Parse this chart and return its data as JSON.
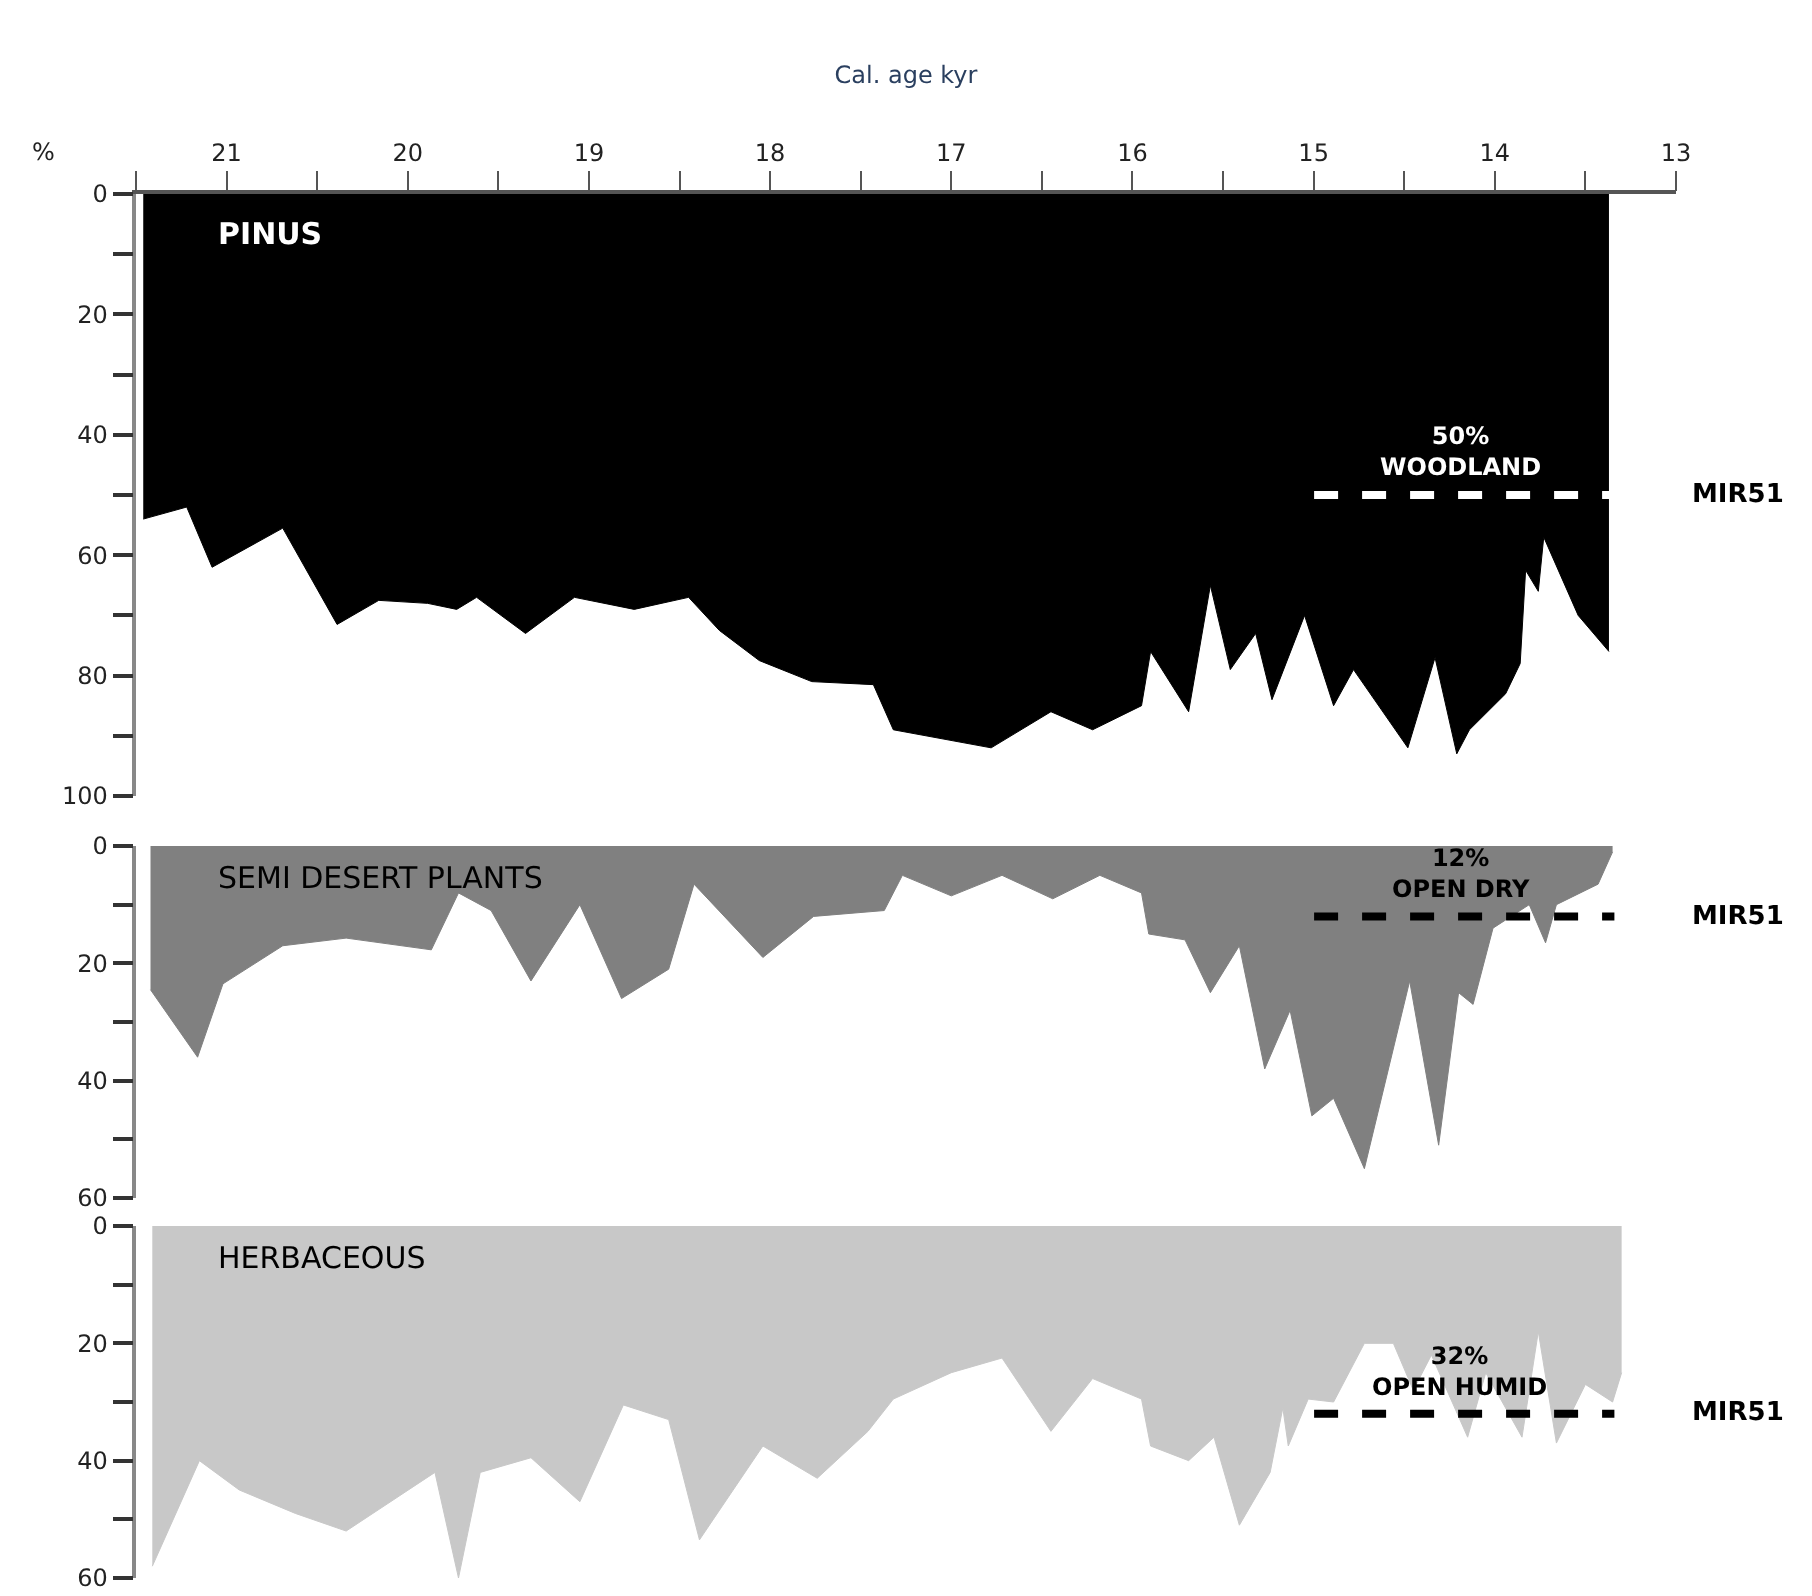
{
  "chart_data": [
    {
      "type": "area",
      "xlabel": "Cal. age kyr",
      "ylabel": "%",
      "xlim": [
        21.5,
        13
      ],
      "ylim": [
        100,
        0
      ],
      "xticks": [
        {
          "value": 21.5,
          "label": null
        },
        21,
        {
          "value": 20.5,
          "label": null
        },
        20,
        {
          "value": 19.5,
          "label": null
        },
        19,
        {
          "value": 18.5,
          "label": null
        },
        18,
        {
          "value": 17.5,
          "label": null
        },
        17,
        {
          "value": 16.5,
          "label": null
        },
        16,
        {
          "value": 15.5,
          "label": null
        },
        15,
        {
          "value": 14.5,
          "label": null
        },
        14,
        {
          "value": 13.5,
          "label": null
        },
        13
      ],
      "yticks": [
        0,
        {
          "value": 10,
          "label": null
        },
        20,
        {
          "value": 30,
          "label": null
        },
        40,
        {
          "value": 50,
          "label": null
        },
        60,
        {
          "value": 70,
          "label": null
        },
        80,
        {
          "value": 90,
          "label": null
        },
        100
      ],
      "series": [
        {
          "name": "PINUS",
          "color": "#000000",
          "x": [
            21.46,
            21.22,
            21.08,
            20.69,
            20.39,
            20.16,
            19.89,
            19.73,
            19.62,
            19.35,
            19.08,
            18.75,
            18.45,
            18.28,
            18.06,
            17.77,
            17.43,
            17.32,
            16.78,
            16.45,
            16.22,
            15.95,
            15.9,
            15.69,
            15.57,
            15.46,
            15.32,
            15.23,
            15.05,
            14.89,
            14.78,
            14.48,
            14.33,
            14.21,
            14.14,
            13.94,
            13.86,
            13.83,
            13.76,
            13.73,
            13.54,
            13.37
          ],
          "values": [
            54,
            52,
            62,
            55.5,
            71.5,
            67.5,
            68,
            69,
            67,
            73,
            67,
            69,
            67,
            72.5,
            77.5,
            81,
            81.5,
            89,
            92,
            86,
            89,
            85,
            76,
            86,
            65,
            79,
            73,
            84,
            70,
            85,
            79,
            92,
            77,
            93,
            89,
            83,
            78,
            62.5,
            66,
            57,
            70,
            76
          ]
        }
      ],
      "ref_lines": [
        {
          "axis": "y",
          "value": 50,
          "label": "50%\nWOODLAND",
          "color": "#ffffff",
          "line_style": "dashed"
        }
      ],
      "annotations": [
        "MIR51"
      ]
    },
    {
      "type": "area",
      "xlim": [
        21.5,
        13
      ],
      "ylim": [
        60,
        0
      ],
      "tick_labels": "y",
      "yticks": [
        0,
        {
          "value": 10,
          "label": null
        },
        20,
        {
          "value": 30,
          "label": null
        },
        40,
        {
          "value": 50,
          "label": null
        },
        60
      ],
      "series": [
        {
          "name": "SEMI DESERT PLANTS",
          "color": "#808080",
          "x": [
            21.42,
            21.16,
            21.02,
            20.69,
            20.34,
            19.87,
            19.72,
            19.54,
            19.32,
            19.05,
            18.82,
            18.56,
            18.42,
            18.04,
            17.76,
            17.37,
            17.27,
            17.0,
            16.72,
            16.44,
            16.18,
            15.95,
            15.91,
            15.71,
            15.57,
            15.41,
            15.27,
            15.13,
            15.01,
            14.89,
            14.72,
            14.47,
            14.31,
            14.2,
            14.12,
            14.01,
            13.81,
            13.72,
            13.66,
            13.43,
            13.35
          ],
          "values": [
            24.5,
            36,
            23.5,
            17,
            15.7,
            17.7,
            8,
            11,
            23,
            10,
            26,
            21,
            6.5,
            19,
            12,
            11,
            5,
            8.5,
            5,
            9,
            5,
            8,
            15,
            16,
            25,
            17,
            38,
            28,
            46,
            43,
            55,
            23,
            51,
            25,
            27,
            14,
            10,
            16.5,
            10,
            6.5,
            1
          ]
        }
      ],
      "ref_lines": [
        {
          "axis": "y",
          "value": 12,
          "label": "12%\nOPEN DRY",
          "color": "#000000",
          "line_style": "dashed"
        }
      ],
      "annotations": [
        "MIR51"
      ]
    },
    {
      "type": "area",
      "xlim": [
        21.5,
        13
      ],
      "ylim": [
        60,
        0
      ],
      "tick_labels": "y",
      "yticks": [
        0,
        {
          "value": 10,
          "label": null
        },
        20,
        {
          "value": 30,
          "label": null
        },
        40,
        {
          "value": 50,
          "label": null
        },
        60
      ],
      "series": [
        {
          "name": "HERBACEOUS",
          "color": "#c8c8c8",
          "x": [
            21.41,
            21.15,
            20.93,
            20.62,
            20.34,
            19.85,
            19.72,
            19.6,
            19.32,
            19.05,
            18.81,
            18.56,
            18.39,
            18.04,
            17.74,
            17.46,
            17.32,
            17.0,
            16.72,
            16.45,
            16.22,
            15.95,
            15.9,
            15.69,
            15.55,
            15.41,
            15.24,
            15.17,
            15.14,
            15.03,
            14.89,
            14.72,
            14.56,
            14.45,
            14.35,
            14.15,
            14.05,
            13.85,
            13.76,
            13.66,
            13.5,
            13.35,
            13.3
          ],
          "values": [
            58,
            40,
            45,
            49,
            52,
            42,
            60,
            42,
            39.5,
            47,
            30.5,
            33,
            53.5,
            37.5,
            43,
            35,
            29.5,
            25,
            22.5,
            35,
            26,
            29.5,
            37.5,
            40,
            36,
            51,
            42,
            31,
            37.5,
            29.5,
            30,
            20,
            20,
            28,
            22,
            36,
            25,
            36,
            18,
            37,
            27,
            30,
            25
          ]
        }
      ],
      "ref_lines": [
        {
          "axis": "y",
          "value": 32,
          "label": "32%\nOPEN HUMID",
          "color": "#000000",
          "line_style": "dashed"
        }
      ],
      "annotations": [
        "MIR51"
      ]
    }
  ]
}
